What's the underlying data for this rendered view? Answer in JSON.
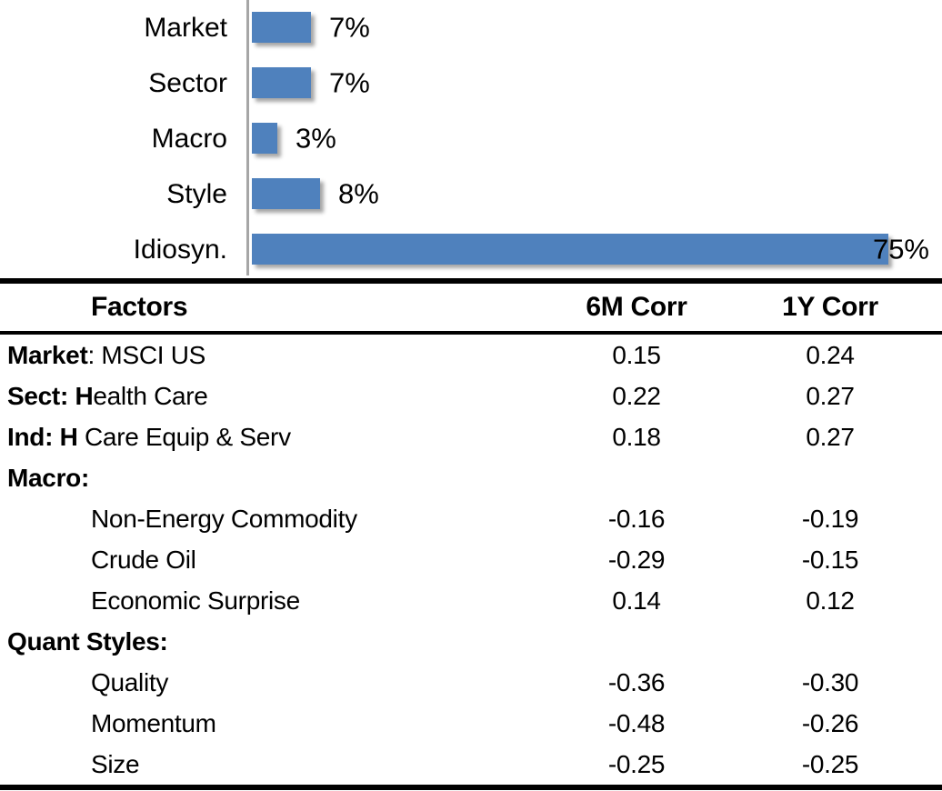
{
  "chart_data": {
    "type": "bar",
    "orientation": "horizontal",
    "title": "",
    "categories": [
      "Market",
      "Sector",
      "Macro",
      "Style",
      "Idiosyn."
    ],
    "values": [
      7,
      7,
      3,
      8,
      75
    ],
    "value_labels": [
      "7%",
      "7%",
      "3%",
      "8%",
      "75%"
    ],
    "xlim": [
      0,
      80
    ],
    "grid": false,
    "legend": false,
    "bar_color": "#4F81BD",
    "axis_line_color": "#A6A6A6",
    "label_position": "outside-end; 75% label overlaps the bar end"
  },
  "table": {
    "columns": [
      "Factors",
      "6M Corr",
      "1Y Corr"
    ],
    "rows": [
      {
        "factor": [
          {
            "text": "Market",
            "bold": true
          },
          {
            "text": ": MSCI US",
            "bold": false
          }
        ],
        "indent": false,
        "corr_6m": "0.15",
        "corr_1y": "0.24"
      },
      {
        "factor": [
          {
            "text": "Sect: H",
            "bold": true
          },
          {
            "text": "ealth Care",
            "bold": false
          }
        ],
        "indent": false,
        "corr_6m": "0.22",
        "corr_1y": "0.27"
      },
      {
        "factor": [
          {
            "text": "Ind: H",
            "bold": true
          },
          {
            "text": " Care Equip & Serv",
            "bold": false
          }
        ],
        "indent": false,
        "corr_6m": "0.18",
        "corr_1y": "0.27"
      },
      {
        "factor": [
          {
            "text": "Macro:",
            "bold": true
          }
        ],
        "indent": false,
        "corr_6m": "",
        "corr_1y": ""
      },
      {
        "factor": [
          {
            "text": "Non-Energy Commodity",
            "bold": false
          }
        ],
        "indent": true,
        "corr_6m": "-0.16",
        "corr_1y": "-0.19"
      },
      {
        "factor": [
          {
            "text": "Crude Oil",
            "bold": false
          }
        ],
        "indent": true,
        "corr_6m": "-0.29",
        "corr_1y": "-0.15"
      },
      {
        "factor": [
          {
            "text": "Economic Surprise",
            "bold": false
          }
        ],
        "indent": true,
        "corr_6m": "0.14",
        "corr_1y": "0.12"
      },
      {
        "factor": [
          {
            "text": "Quant Styles:",
            "bold": true
          }
        ],
        "indent": false,
        "corr_6m": "",
        "corr_1y": ""
      },
      {
        "factor": [
          {
            "text": "Quality",
            "bold": false
          }
        ],
        "indent": true,
        "corr_6m": "-0.36",
        "corr_1y": "-0.30"
      },
      {
        "factor": [
          {
            "text": "Momentum",
            "bold": false
          }
        ],
        "indent": true,
        "corr_6m": "-0.48",
        "corr_1y": "-0.26"
      },
      {
        "factor": [
          {
            "text": "Size",
            "bold": false
          }
        ],
        "indent": true,
        "corr_6m": "-0.25",
        "corr_1y": "-0.25"
      }
    ]
  }
}
